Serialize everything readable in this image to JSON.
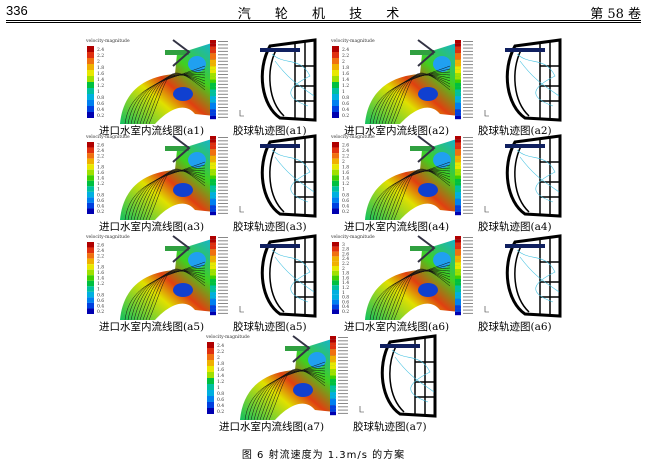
{
  "header": {
    "page_number": "336",
    "journal": "汽 轮 机 技 术",
    "volume": "第 58 卷"
  },
  "panels": [
    {
      "flow_caption": "进口水室内流线图(a1)",
      "traj_caption": "胶球轨迹图(a1)",
      "legend_title": "velocity-magnitude",
      "legend_values": [
        "2.4",
        "2.2",
        "2",
        "1.8",
        "1.6",
        "1.4",
        "1.2",
        "1",
        "0.8",
        "0.6",
        "0.4",
        "0.2"
      ]
    },
    {
      "flow_caption": "进口水室内流线图(a2)",
      "traj_caption": "胶球轨迹图(a2)",
      "legend_title": "velocity-magnitude",
      "legend_values": [
        "2.4",
        "2.2",
        "2",
        "1.8",
        "1.6",
        "1.4",
        "1.2",
        "1",
        "0.8",
        "0.6",
        "0.4",
        "0.2"
      ]
    },
    {
      "flow_caption": "进口水室内流线图(a3)",
      "traj_caption": "胶球轨迹图(a3)",
      "legend_title": "velocity-magnitude",
      "legend_values": [
        "2.6",
        "2.4",
        "2.2",
        "2",
        "1.8",
        "1.6",
        "1.4",
        "1.2",
        "1",
        "0.8",
        "0.6",
        "0.4",
        "0.2"
      ]
    },
    {
      "flow_caption": "进口水室内流线图(a4)",
      "traj_caption": "胶球轨迹图(a4)",
      "legend_title": "velocity-magnitude",
      "legend_values": [
        "2.6",
        "2.4",
        "2.2",
        "2",
        "1.8",
        "1.6",
        "1.4",
        "1.2",
        "1",
        "0.8",
        "0.6",
        "0.4",
        "0.2"
      ]
    },
    {
      "flow_caption": "进口水室内流线图(a5)",
      "traj_caption": "胶球轨迹图(a5)",
      "legend_title": "velocity-magnitude",
      "legend_values": [
        "2.6",
        "2.4",
        "2.2",
        "2",
        "1.8",
        "1.6",
        "1.4",
        "1.2",
        "1",
        "0.8",
        "0.6",
        "0.4",
        "0.2"
      ]
    },
    {
      "flow_caption": "进口水室内流线图(a6)",
      "traj_caption": "胶球轨迹图(a6)",
      "legend_title": "velocity-magnitude",
      "legend_values": [
        "3",
        "2.8",
        "2.6",
        "2.4",
        "2.2",
        "2",
        "1.8",
        "1.6",
        "1.4",
        "1.2",
        "1",
        "0.8",
        "0.6",
        "0.4",
        "0.2"
      ]
    },
    {
      "flow_caption": "进口水室内流线图(a7)",
      "traj_caption": "胶球轨迹图(a7)",
      "legend_title": "velocity-magnitude",
      "legend_values": [
        "2.4",
        "2.2",
        "2",
        "1.8",
        "1.6",
        "1.4",
        "1.2",
        "1",
        "0.8",
        "0.6",
        "0.4",
        "0.2"
      ]
    }
  ],
  "figure_caption": "图 6   射流速度为 1.3m/s 的方案",
  "colors": {
    "legend_scale": [
      "#b00000",
      "#e03010",
      "#f07010",
      "#f0b000",
      "#e8e800",
      "#a0e000",
      "#40d000",
      "#00c040",
      "#00c0a0",
      "#00b0e0",
      "#0080f0",
      "#0040e0",
      "#0000b0"
    ]
  }
}
